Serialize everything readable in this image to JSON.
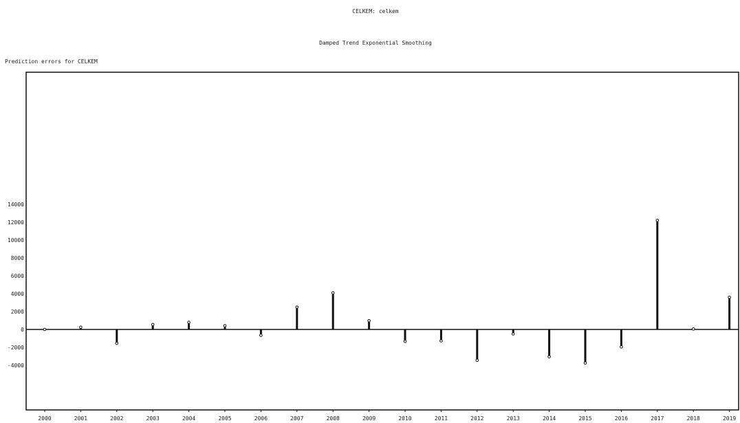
{
  "chart_data": {
    "type": "bar",
    "title": "CELKEM: celkem",
    "subtitle": "Damped Trend Exponential Smoothing",
    "ylabel": "Prediction errors for CELKEM",
    "xlabel": "",
    "categories": [
      "2000",
      "2001",
      "2002",
      "2003",
      "2004",
      "2005",
      "2006",
      "2007",
      "2008",
      "2009",
      "2010",
      "2011",
      "2012",
      "2013",
      "2014",
      "2015",
      "2016",
      "2017",
      "2018",
      "2019"
    ],
    "values": [
      0,
      250,
      -1550,
      550,
      800,
      420,
      -650,
      2500,
      4100,
      980,
      -1330,
      -1270,
      -3450,
      -500,
      -3050,
      -3750,
      -1950,
      12200,
      50,
      3600
    ],
    "ylim": [
      -4500,
      14500
    ],
    "yticks": [
      -4000,
      -2000,
      0,
      2000,
      4000,
      6000,
      8000,
      10000,
      12000,
      14000
    ],
    "ytick_labels": [
      "-4000",
      "-2000",
      "0",
      "2000",
      "4000",
      "6000",
      "8000",
      "10000",
      "12000",
      "14000"
    ],
    "grid": false,
    "legend": "none",
    "bar_color": "#111111"
  }
}
